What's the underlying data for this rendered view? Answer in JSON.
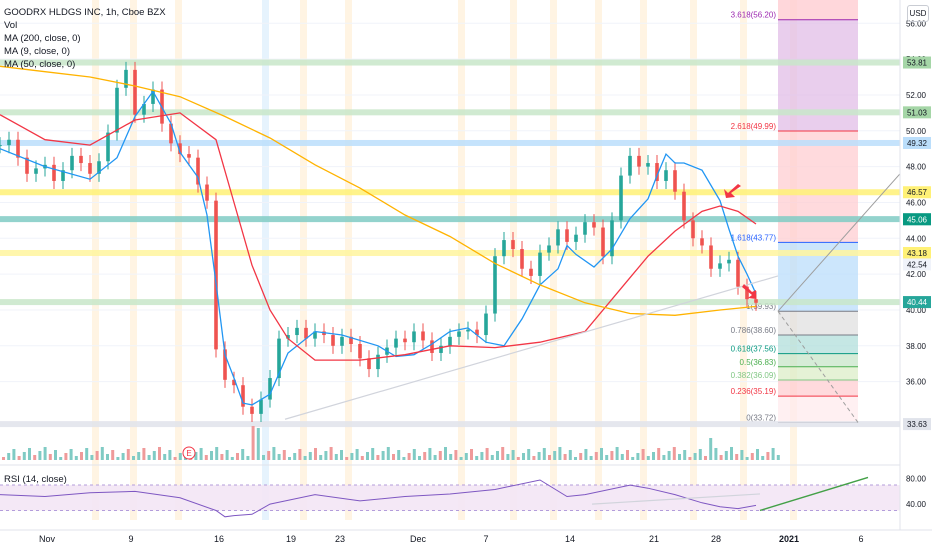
{
  "legend": {
    "title": "GOODRX HLDGS INC, 1h, Cboe BZX",
    "vol": "Vol",
    "ma200": "MA (200, close, 0)",
    "ma9": "MA (9, close, 0)",
    "ma50": "MA (50, close, 0)"
  },
  "rsi_label": "RSI (14, close)",
  "currency": "USD",
  "earnings_marker": "E",
  "chart_data": [
    {
      "type": "candlestick",
      "title": "GOODRX HLDGS INC, 1h, Cboe BZX",
      "x_ticks": [
        "Nov",
        "9",
        "16",
        "19",
        "23",
        "Dec",
        "7",
        "14",
        "21",
        "28",
        "2021",
        "6"
      ],
      "y_ticks": [
        36.0,
        38.0,
        40.0,
        42.0,
        44.0,
        46.0,
        48.0,
        50.0,
        52.0,
        54.0,
        56.0
      ],
      "ylim": [
        33.3,
        57.3
      ],
      "price_labels": [
        {
          "value": "53.81",
          "color": "#a5d6a7",
          "text_color": "#131722"
        },
        {
          "value": "51.03",
          "color": "#a5d6a7",
          "text_color": "#131722"
        },
        {
          "value": "49.32",
          "color": "#bbdefb",
          "text_color": "#131722"
        },
        {
          "value": "46.57",
          "color": "#fff176",
          "text_color": "#131722"
        },
        {
          "value": "45.07",
          "color": "#80cbc4",
          "text_color": "#131722"
        },
        {
          "value": "45.06",
          "color": "#089981",
          "text_color": "#ffffff"
        },
        {
          "value": "43.18",
          "color": "#fff176",
          "text_color": "#131722"
        },
        {
          "value": "42.54",
          "color": "#f0f3fa",
          "text_color": "#131722"
        },
        {
          "value": "40.44",
          "color": "#26a69a",
          "text_color": "#ffffff"
        },
        {
          "value": "33.63",
          "color": "#e0e3eb",
          "text_color": "#131722"
        }
      ],
      "horizontal_levels": [
        {
          "value": 53.81,
          "color": "#c8e6c9"
        },
        {
          "value": 51.03,
          "color": "#c8e6c9"
        },
        {
          "value": 49.32,
          "color": "#bbdefb"
        },
        {
          "value": 46.57,
          "color": "#fff176"
        },
        {
          "value": 45.07,
          "color": "#80cbc4"
        },
        {
          "value": 43.18,
          "color": "#fff59d"
        },
        {
          "value": 40.44,
          "color": "#c8e6c9"
        },
        {
          "value": 33.63,
          "color": "#e0e3eb"
        }
      ],
      "fib_levels": [
        {
          "ratio": "3.618",
          "price": 56.2,
          "text": "3.618(56.20)",
          "color": "#9c27b0"
        },
        {
          "ratio": "2.618",
          "price": 49.99,
          "text": "2.618(49.99)",
          "color": "#f23645"
        },
        {
          "ratio": "1.618",
          "price": 43.77,
          "text": "1.618(43.77)",
          "color": "#2962ff"
        },
        {
          "ratio": "1",
          "price": 39.93,
          "text": "1(39.93)",
          "color": "#787b86"
        },
        {
          "ratio": "0.786",
          "price": 38.6,
          "text": "0.786(38.60)",
          "color": "#787b86"
        },
        {
          "ratio": "0.618",
          "price": 37.56,
          "text": "0.618(37.56)",
          "color": "#089981"
        },
        {
          "ratio": "0.5",
          "price": 36.83,
          "text": "0.5(36.83)",
          "color": "#4caf50"
        },
        {
          "ratio": "0.382",
          "price": 36.09,
          "text": "0.382(36.09)",
          "color": "#81c784"
        },
        {
          "ratio": "0.236",
          "price": 35.19,
          "text": "0.236(35.19)",
          "color": "#f23645"
        },
        {
          "ratio": "0",
          "price": 33.72,
          "text": "0(33.72)",
          "color": "#787b86"
        }
      ],
      "series": [
        {
          "name": "MA (9, close, 0)",
          "color": "#2196f3",
          "x": [
            0.0,
            0.05,
            0.1,
            0.13,
            0.15,
            0.17,
            0.19,
            0.2,
            0.22,
            0.23,
            0.24,
            0.25,
            0.26,
            0.27,
            0.28,
            0.3,
            0.32,
            0.35,
            0.38,
            0.42,
            0.44,
            0.46,
            0.48,
            0.5,
            0.52,
            0.54,
            0.56,
            0.58,
            0.6,
            0.62,
            0.63,
            0.64,
            0.66,
            0.68,
            0.7,
            0.72,
            0.73,
            0.74,
            0.75,
            0.76,
            0.78,
            0.8,
            0.81,
            0.82,
            0.83,
            0.84
          ],
          "y": [
            49.0,
            48.0,
            47.3,
            48.5,
            50.8,
            52.2,
            50.4,
            48.8,
            47.4,
            45.3,
            41.5,
            37.5,
            36.2,
            34.8,
            34.7,
            35.3,
            37.6,
            38.8,
            38.6,
            38.0,
            37.4,
            37.5,
            38.1,
            38.8,
            39.0,
            38.2,
            38.0,
            39.5,
            41.4,
            42.3,
            43.6,
            43.1,
            42.4,
            43.4,
            45.1,
            46.2,
            47.5,
            48.7,
            48.2,
            48.2,
            47.8,
            46.1,
            44.5,
            43.0,
            42.0,
            40.9
          ]
        },
        {
          "name": "MA (50, close, 0)",
          "color": "#f23645",
          "x": [
            0.0,
            0.05,
            0.1,
            0.15,
            0.2,
            0.24,
            0.26,
            0.28,
            0.3,
            0.32,
            0.35,
            0.4,
            0.45,
            0.5,
            0.55,
            0.6,
            0.65,
            0.7,
            0.72,
            0.75,
            0.78,
            0.8,
            0.82,
            0.84
          ],
          "y": [
            50.9,
            49.5,
            49.2,
            50.6,
            51.0,
            49.5,
            46.0,
            42.5,
            40.0,
            38.4,
            37.2,
            37.2,
            37.5,
            38.0,
            37.9,
            38.2,
            38.8,
            41.8,
            43.0,
            44.4,
            45.5,
            45.8,
            45.5,
            44.8
          ]
        },
        {
          "name": "MA (200, close, 0)",
          "color": "#ffb300",
          "x": [
            0.0,
            0.05,
            0.1,
            0.15,
            0.2,
            0.25,
            0.3,
            0.35,
            0.4,
            0.45,
            0.5,
            0.55,
            0.6,
            0.65,
            0.7,
            0.75,
            0.8,
            0.84
          ],
          "y": [
            53.6,
            53.3,
            53.0,
            52.5,
            51.9,
            50.8,
            49.6,
            48.1,
            46.8,
            45.3,
            44.1,
            42.6,
            41.4,
            40.4,
            39.8,
            39.7,
            40.0,
            40.2
          ]
        }
      ],
      "candles": {
        "x": [
          0.0,
          0.01,
          0.02,
          0.03,
          0.04,
          0.05,
          0.06,
          0.07,
          0.08,
          0.09,
          0.1,
          0.11,
          0.12,
          0.13,
          0.14,
          0.15,
          0.16,
          0.17,
          0.18,
          0.19,
          0.2,
          0.21,
          0.22,
          0.23,
          0.24,
          0.25,
          0.26,
          0.27,
          0.28,
          0.29,
          0.3,
          0.31,
          0.32,
          0.33,
          0.34,
          0.35,
          0.36,
          0.37,
          0.38,
          0.39,
          0.4,
          0.41,
          0.42,
          0.43,
          0.44,
          0.45,
          0.46,
          0.47,
          0.48,
          0.49,
          0.5,
          0.51,
          0.52,
          0.53,
          0.54,
          0.55,
          0.56,
          0.57,
          0.58,
          0.59,
          0.6,
          0.61,
          0.62,
          0.63,
          0.64,
          0.65,
          0.66,
          0.67,
          0.68,
          0.69,
          0.7,
          0.71,
          0.72,
          0.73,
          0.74,
          0.75,
          0.76,
          0.77,
          0.78,
          0.79,
          0.8,
          0.81,
          0.82,
          0.83,
          0.84
        ],
        "close": [
          49.2,
          49.5,
          48.5,
          47.6,
          47.9,
          48.1,
          47.2,
          47.8,
          48.6,
          48.2,
          47.6,
          48.3,
          49.9,
          52.4,
          53.4,
          50.9,
          51.5,
          52.3,
          50.4,
          49.3,
          48.7,
          48.5,
          47.0,
          46.1,
          37.8,
          36.1,
          35.8,
          34.6,
          34.2,
          35.0,
          36.2,
          38.4,
          38.6,
          39.0,
          38.4,
          38.8,
          38.6,
          38.0,
          38.5,
          38.1,
          37.3,
          36.7,
          37.5,
          37.9,
          38.4,
          38.2,
          38.8,
          38.3,
          37.6,
          38.0,
          38.5,
          38.8,
          38.9,
          38.6,
          39.8,
          43.0,
          43.9,
          43.4,
          42.3,
          41.9,
          43.2,
          43.6,
          44.5,
          43.8,
          44.2,
          44.9,
          44.6,
          43.0,
          45.0,
          47.5,
          48.6,
          48.0,
          48.2,
          47.2,
          47.8,
          46.6,
          45.0,
          44.0,
          43.6,
          42.3,
          42.6,
          42.8,
          41.3,
          40.6,
          40.4
        ]
      },
      "rsi": {
        "ylim": [
          15,
          100
        ],
        "ticks": [
          40.0,
          80.0
        ],
        "x": [
          0.0,
          0.05,
          0.1,
          0.15,
          0.2,
          0.24,
          0.25,
          0.26,
          0.28,
          0.3,
          0.35,
          0.4,
          0.45,
          0.5,
          0.55,
          0.6,
          0.63,
          0.65,
          0.7,
          0.72,
          0.75,
          0.78,
          0.8,
          0.82,
          0.84
        ],
        "y": [
          55.0,
          52.0,
          58.0,
          60.0,
          50.0,
          30.0,
          20.0,
          22.0,
          24.0,
          40.0,
          55.0,
          45.0,
          52.0,
          56.0,
          63.0,
          78.0,
          52.0,
          55.0,
          70.0,
          65.0,
          55.0,
          42.0,
          36.0,
          33.0,
          38.0
        ]
      }
    }
  ]
}
